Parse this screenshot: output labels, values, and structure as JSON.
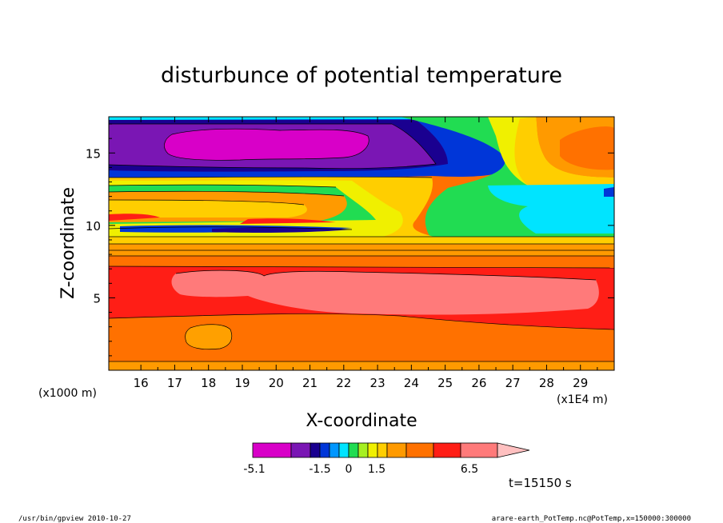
{
  "chart_data": {
    "type": "heatmap",
    "title": "disturbunce of potential temperature",
    "xlabel": "X-coordinate",
    "ylabel": "Z-coordinate",
    "x_unit": "(x1E4 m)",
    "y_unit": "(x1000 m)",
    "xlim": [
      15.05,
      30.0
    ],
    "ylim": [
      0.0,
      17.5
    ],
    "x_ticks": [
      "16",
      "17",
      "18",
      "19",
      "20",
      "21",
      "22",
      "23",
      "24",
      "25",
      "26",
      "27",
      "28",
      "29"
    ],
    "y_ticks": [
      "5",
      "10",
      "15"
    ],
    "colorbar": {
      "labels": [
        "-5.1",
        "-1.5",
        "0",
        "1.5",
        "6.5"
      ],
      "colors": [
        "#d800c8",
        "#7a16b4",
        "#1a0090",
        "#0036d8",
        "#0096ff",
        "#00e4ff",
        "#21dc52",
        "#a6f022",
        "#f0f000",
        "#ffce00",
        "#ff9a00",
        "#ff7100",
        "#ff1e16",
        "#ff7a7a",
        "#ffc0c0"
      ]
    },
    "regions": [
      {
        "level": "orange",
        "color": "#ff7100",
        "x": [
          15.05,
          30.0
        ],
        "z": [
          0.0,
          3.8
        ]
      },
      {
        "level": "orange-patch",
        "color": "#ffa000",
        "x": [
          17.8,
          18.8
        ],
        "z": [
          1.5,
          3.2
        ]
      },
      {
        "level": "red",
        "color": "#ff1e16",
        "x": [
          15.05,
          30.0
        ],
        "z": [
          3.8,
          7.3
        ]
      },
      {
        "level": "pink",
        "color": "#ff7a7a",
        "x": [
          17.3,
          29.0
        ],
        "z": [
          4.2,
          7.0
        ]
      },
      {
        "level": "band-orange",
        "color": "#ff9a00",
        "x": [
          15.05,
          30.0
        ],
        "z": [
          7.3,
          9.3
        ]
      },
      {
        "level": "band-mixed",
        "color": "#ffce00",
        "x": [
          15.05,
          24.5
        ],
        "z": [
          9.3,
          13.0
        ]
      },
      {
        "level": "green",
        "color": "#21dc52",
        "x": [
          24.0,
          27.5
        ],
        "z": [
          8.6,
          14.5
        ]
      },
      {
        "level": "cyan",
        "color": "#00e4ff",
        "x": [
          26.5,
          30.0
        ],
        "z": [
          9.5,
          12.8
        ]
      },
      {
        "level": "yellow-top",
        "color": "#f0f000",
        "x": [
          26.0,
          30.0
        ],
        "z": [
          12.8,
          17.5
        ]
      },
      {
        "level": "orange-top",
        "color": "#ff9a00",
        "x": [
          27.5,
          30.0
        ],
        "z": [
          13.5,
          17.0
        ]
      },
      {
        "level": "blue-upper",
        "color": "#0036d8",
        "x": [
          15.05,
          26.0
        ],
        "z": [
          13.8,
          17.5
        ]
      },
      {
        "level": "purple",
        "color": "#7a16b4",
        "x": [
          15.05,
          24.5
        ],
        "z": [
          14.0,
          17.1
        ]
      },
      {
        "level": "magenta",
        "color": "#d800c8",
        "x": [
          16.7,
          22.8
        ],
        "z": [
          14.9,
          16.8
        ]
      },
      {
        "level": "blue-lens",
        "color": "#1a0090",
        "x": [
          18.5,
          22.5
        ],
        "z": [
          9.5,
          10.0
        ]
      }
    ]
  },
  "time_label": "t=15150 s",
  "footer": {
    "left": "/usr/bin/gpview  2010-10-27",
    "right": "arare-earth_PotTemp.nc@PotTemp,x=150000:300000"
  }
}
